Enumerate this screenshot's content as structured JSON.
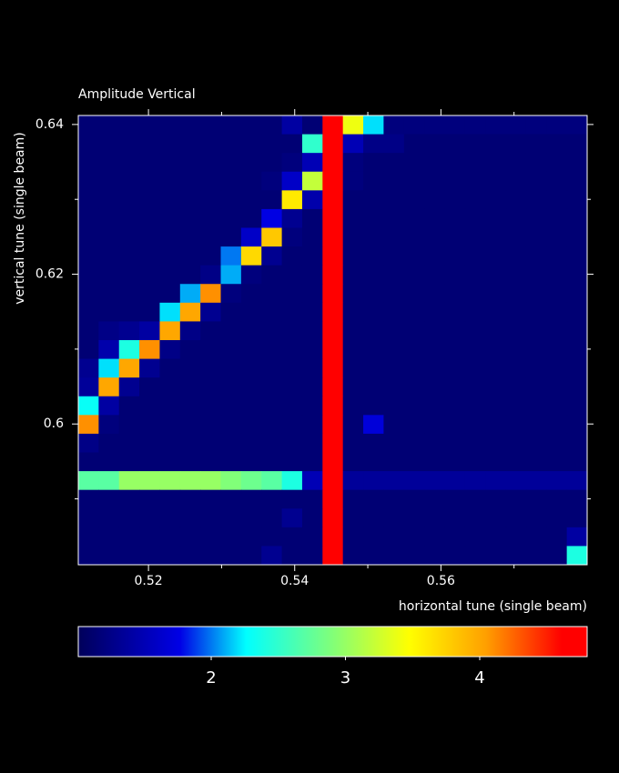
{
  "chart_data": {
    "type": "heatmap",
    "title": "Amplitude Vertical",
    "xlabel": "horizontal tune (single beam)",
    "ylabel": "vertical tune (single beam)",
    "xlim": [
      0.5104,
      0.58
    ],
    "ylim": [
      0.5812,
      0.6412
    ],
    "xticks": [
      0.52,
      0.54,
      0.56
    ],
    "xminorticks": [
      0.53,
      0.55,
      0.57
    ],
    "yticks": [
      0.6,
      0.62,
      0.64
    ],
    "yminorticks": [
      0.59,
      0.61,
      0.63
    ],
    "clim": [
      1.01,
      4.8
    ],
    "cticks": [
      2,
      3,
      4
    ],
    "colorscale": [
      [
        0,
        "#00005a"
      ],
      [
        0.2,
        "#0000e6"
      ],
      [
        0.33,
        "#00ffff"
      ],
      [
        0.5,
        "#82ff78"
      ],
      [
        0.65,
        "#ffff00"
      ],
      [
        0.8,
        "#ffa000"
      ],
      [
        0.95,
        "#ff0000"
      ],
      [
        1,
        "#ff0000"
      ]
    ],
    "z": [
      [
        1.15,
        1.15,
        1.15,
        1.15,
        1.15,
        1.15,
        1.15,
        1.15,
        1.15,
        1.15,
        1.4,
        1.15,
        4.8,
        3.4,
        2.2,
        1.2,
        1.2,
        1.2,
        1.2,
        1.2,
        1.2,
        1.2,
        1.2,
        1.2,
        1.2
      ],
      [
        1.15,
        1.15,
        1.15,
        1.15,
        1.15,
        1.15,
        1.15,
        1.15,
        1.15,
        1.15,
        1.15,
        2.5,
        4.8,
        1.5,
        1.25,
        1.25,
        1.15,
        1.15,
        1.15,
        1.15,
        1.15,
        1.15,
        1.15,
        1.15,
        1.15
      ],
      [
        1.15,
        1.15,
        1.15,
        1.15,
        1.15,
        1.15,
        1.15,
        1.15,
        1.15,
        1.15,
        1.2,
        1.5,
        4.8,
        1.2,
        1.15,
        1.15,
        1.15,
        1.15,
        1.15,
        1.15,
        1.15,
        1.15,
        1.15,
        1.15,
        1.15
      ],
      [
        1.15,
        1.15,
        1.15,
        1.15,
        1.15,
        1.15,
        1.15,
        1.15,
        1.15,
        1.2,
        1.6,
        3.2,
        4.8,
        1.2,
        1.15,
        1.15,
        1.15,
        1.15,
        1.15,
        1.15,
        1.15,
        1.15,
        1.15,
        1.15,
        1.15
      ],
      [
        1.15,
        1.15,
        1.15,
        1.15,
        1.15,
        1.15,
        1.15,
        1.15,
        1.15,
        1.15,
        3.6,
        1.45,
        4.8,
        1.15,
        1.15,
        1.15,
        1.15,
        1.15,
        1.15,
        1.15,
        1.15,
        1.15,
        1.15,
        1.15,
        1.15
      ],
      [
        1.15,
        1.15,
        1.15,
        1.15,
        1.15,
        1.15,
        1.15,
        1.15,
        1.15,
        1.75,
        1.3,
        1.15,
        4.8,
        1.15,
        1.15,
        1.15,
        1.15,
        1.15,
        1.15,
        1.15,
        1.15,
        1.15,
        1.15,
        1.15,
        1.15
      ],
      [
        1.15,
        1.15,
        1.15,
        1.15,
        1.15,
        1.15,
        1.15,
        1.15,
        1.6,
        3.8,
        1.2,
        1.15,
        4.8,
        1.15,
        1.15,
        1.15,
        1.15,
        1.15,
        1.15,
        1.15,
        1.15,
        1.15,
        1.15,
        1.15,
        1.15
      ],
      [
        1.15,
        1.15,
        1.15,
        1.15,
        1.15,
        1.15,
        1.15,
        2.0,
        3.7,
        1.3,
        1.15,
        1.15,
        4.8,
        1.15,
        1.15,
        1.15,
        1.15,
        1.15,
        1.15,
        1.15,
        1.15,
        1.15,
        1.15,
        1.15,
        1.15
      ],
      [
        1.15,
        1.15,
        1.15,
        1.15,
        1.15,
        1.15,
        1.25,
        2.1,
        1.2,
        1.15,
        1.15,
        1.15,
        4.8,
        1.15,
        1.15,
        1.15,
        1.15,
        1.15,
        1.15,
        1.15,
        1.15,
        1.15,
        1.15,
        1.15,
        1.15
      ],
      [
        1.15,
        1.15,
        1.15,
        1.15,
        1.15,
        2.1,
        4.1,
        1.2,
        1.15,
        1.15,
        1.15,
        1.15,
        4.8,
        1.15,
        1.15,
        1.15,
        1.15,
        1.15,
        1.15,
        1.15,
        1.15,
        1.15,
        1.15,
        1.15,
        1.15
      ],
      [
        1.15,
        1.15,
        1.15,
        1.15,
        2.2,
        4.0,
        1.3,
        1.15,
        1.15,
        1.15,
        1.15,
        1.15,
        4.8,
        1.15,
        1.15,
        1.15,
        1.15,
        1.15,
        1.15,
        1.15,
        1.15,
        1.15,
        1.15,
        1.15,
        1.15
      ],
      [
        1.15,
        1.25,
        1.3,
        1.4,
        4.0,
        1.25,
        1.15,
        1.15,
        1.15,
        1.15,
        1.15,
        1.15,
        4.8,
        1.15,
        1.15,
        1.15,
        1.15,
        1.15,
        1.15,
        1.15,
        1.15,
        1.15,
        1.15,
        1.15,
        1.15
      ],
      [
        1.15,
        1.45,
        2.4,
        4.1,
        1.25,
        1.15,
        1.15,
        1.15,
        1.15,
        1.15,
        1.15,
        1.15,
        4.8,
        1.15,
        1.15,
        1.15,
        1.15,
        1.15,
        1.15,
        1.15,
        1.15,
        1.15,
        1.15,
        1.15,
        1.15
      ],
      [
        1.3,
        2.2,
        4.0,
        1.3,
        1.15,
        1.15,
        1.15,
        1.15,
        1.15,
        1.15,
        1.15,
        1.15,
        4.8,
        1.15,
        1.15,
        1.15,
        1.15,
        1.15,
        1.15,
        1.15,
        1.15,
        1.15,
        1.15,
        1.15,
        1.15
      ],
      [
        1.35,
        4.0,
        1.3,
        1.15,
        1.15,
        1.15,
        1.15,
        1.15,
        1.15,
        1.15,
        1.15,
        1.15,
        4.8,
        1.15,
        1.15,
        1.15,
        1.15,
        1.15,
        1.15,
        1.15,
        1.15,
        1.15,
        1.15,
        1.15,
        1.15
      ],
      [
        2.3,
        1.4,
        1.15,
        1.15,
        1.15,
        1.15,
        1.15,
        1.15,
        1.15,
        1.15,
        1.15,
        1.15,
        4.8,
        1.15,
        1.15,
        1.15,
        1.15,
        1.15,
        1.15,
        1.15,
        1.15,
        1.15,
        1.15,
        1.15,
        1.15
      ],
      [
        4.1,
        1.2,
        1.15,
        1.15,
        1.15,
        1.15,
        1.15,
        1.15,
        1.15,
        1.15,
        1.15,
        1.15,
        4.8,
        1.15,
        1.7,
        1.15,
        1.15,
        1.15,
        1.15,
        1.15,
        1.15,
        1.15,
        1.15,
        1.15,
        1.15
      ],
      [
        1.25,
        1.15,
        1.15,
        1.15,
        1.15,
        1.15,
        1.15,
        1.15,
        1.15,
        1.15,
        1.15,
        1.15,
        4.8,
        1.15,
        1.15,
        1.15,
        1.15,
        1.15,
        1.15,
        1.15,
        1.15,
        1.15,
        1.15,
        1.15,
        1.15
      ],
      [
        1.15,
        1.15,
        1.15,
        1.15,
        1.15,
        1.15,
        1.15,
        1.15,
        1.15,
        1.15,
        1.15,
        1.15,
        4.8,
        1.15,
        1.15,
        1.15,
        1.15,
        1.15,
        1.15,
        1.15,
        1.15,
        1.15,
        1.15,
        1.15,
        1.15
      ],
      [
        2.7,
        2.7,
        3.0,
        3.0,
        3.0,
        3.0,
        3.0,
        2.9,
        2.8,
        2.7,
        2.4,
        1.5,
        4.8,
        1.35,
        1.35,
        1.35,
        1.35,
        1.35,
        1.35,
        1.35,
        1.35,
        1.35,
        1.35,
        1.35,
        1.35
      ],
      [
        1.15,
        1.15,
        1.15,
        1.15,
        1.15,
        1.15,
        1.15,
        1.15,
        1.15,
        1.15,
        1.15,
        1.15,
        4.8,
        1.15,
        1.15,
        1.15,
        1.15,
        1.15,
        1.15,
        1.15,
        1.15,
        1.15,
        1.15,
        1.15,
        1.15
      ],
      [
        1.15,
        1.15,
        1.15,
        1.15,
        1.15,
        1.15,
        1.15,
        1.15,
        1.15,
        1.15,
        1.3,
        1.15,
        4.8,
        1.15,
        1.15,
        1.15,
        1.15,
        1.15,
        1.15,
        1.15,
        1.15,
        1.15,
        1.15,
        1.15,
        1.15
      ],
      [
        1.15,
        1.15,
        1.15,
        1.15,
        1.15,
        1.15,
        1.15,
        1.15,
        1.15,
        1.15,
        1.15,
        1.15,
        4.8,
        1.15,
        1.15,
        1.15,
        1.15,
        1.15,
        1.15,
        1.15,
        1.15,
        1.15,
        1.15,
        1.15,
        1.4
      ],
      [
        1.15,
        1.15,
        1.15,
        1.15,
        1.15,
        1.15,
        1.15,
        1.15,
        1.15,
        1.3,
        1.15,
        1.15,
        4.8,
        1.15,
        1.15,
        1.15,
        1.15,
        1.15,
        1.15,
        1.15,
        1.15,
        1.15,
        1.15,
        1.15,
        2.4
      ]
    ]
  }
}
